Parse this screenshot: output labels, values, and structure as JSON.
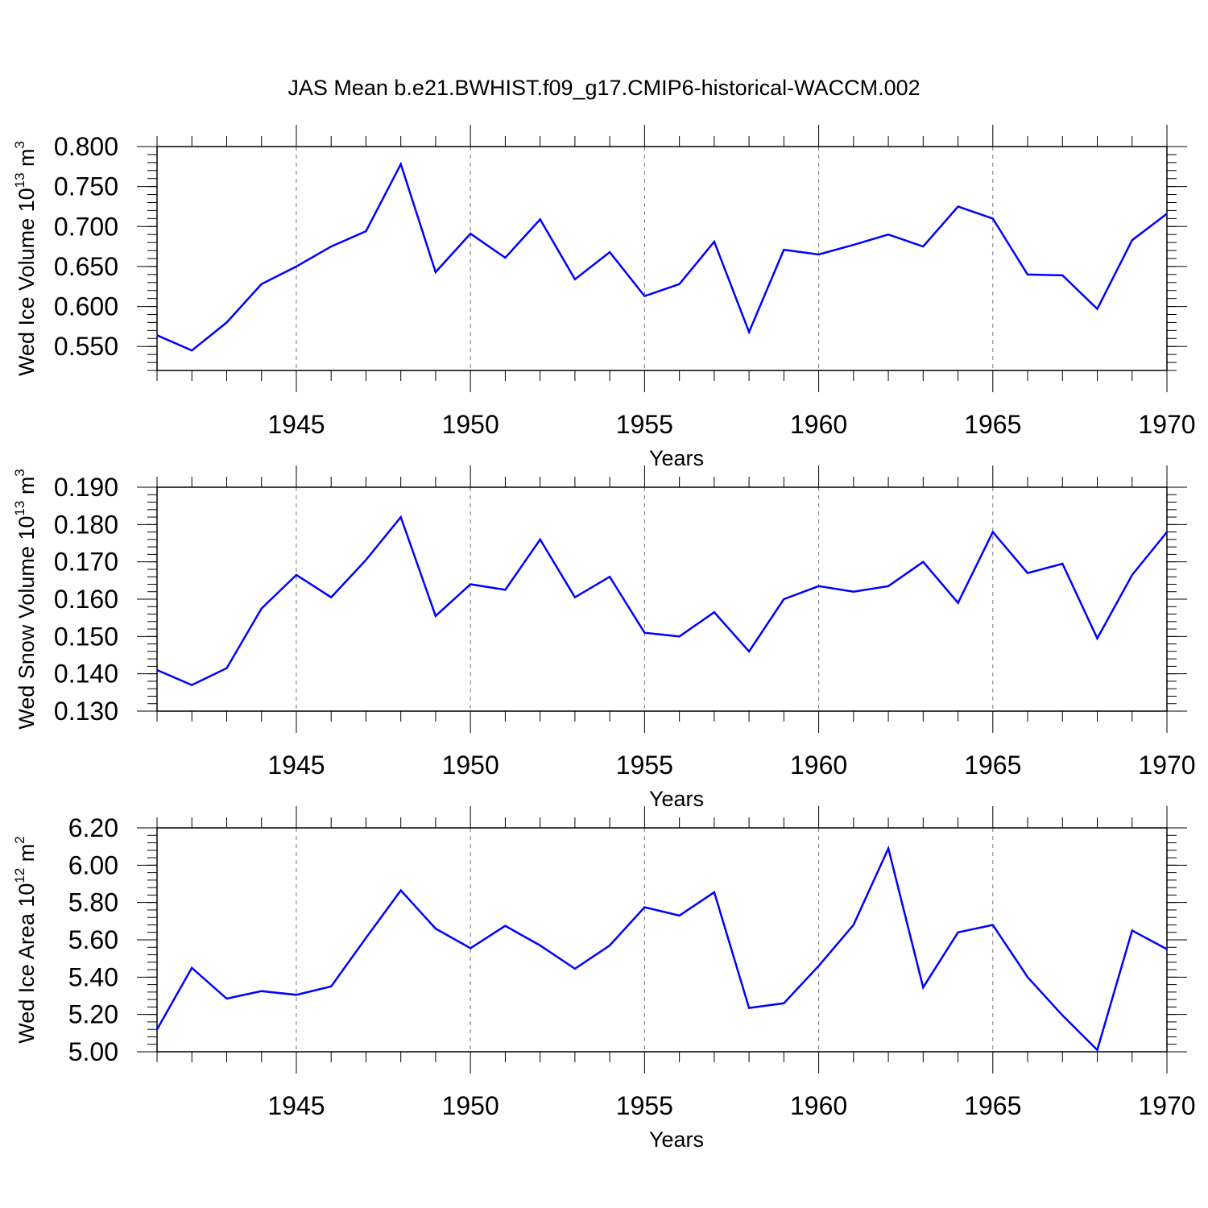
{
  "title": "JAS Mean b.e21.BWHIST.f09_g17.CMIP6-historical-WACCM.002",
  "chart_data": [
    {
      "type": "line",
      "ylabel": "Wed Ice Volume 10<sup>13</sup> m<sup>3</sup>",
      "ylabel_parts": [
        "Wed Ice Volume 10",
        "13",
        " m",
        "3"
      ],
      "xlabel": "Years",
      "x": [
        1941,
        1942,
        1943,
        1944,
        1945,
        1946,
        1947,
        1948,
        1949,
        1950,
        1951,
        1952,
        1953,
        1954,
        1955,
        1956,
        1957,
        1958,
        1959,
        1960,
        1961,
        1962,
        1963,
        1964,
        1965,
        1966,
        1967,
        1968,
        1969,
        1970
      ],
      "values": [
        0.564,
        0.545,
        0.58,
        0.628,
        0.65,
        0.675,
        0.694,
        0.778,
        0.643,
        0.691,
        0.661,
        0.709,
        0.634,
        0.668,
        0.613,
        0.628,
        0.681,
        0.568,
        0.671,
        0.665,
        0.677,
        0.69,
        0.675,
        0.725,
        0.71,
        0.64,
        0.639,
        0.597,
        0.683,
        0.716
      ],
      "ylim": [
        0.52,
        0.8
      ],
      "yticks": [
        0.55,
        0.6,
        0.65,
        0.7,
        0.75,
        0.8
      ],
      "ytick_labels": [
        "0.550",
        "0.600",
        "0.650",
        "0.700",
        "0.750",
        "0.800"
      ],
      "xlim": [
        1941,
        1970
      ],
      "xticks": [
        1945,
        1950,
        1955,
        1960,
        1965,
        1970
      ],
      "xtick_labels": [
        "1945",
        "1950",
        "1955",
        "1960",
        "1965",
        "1970"
      ],
      "line_color": "#0000ff"
    },
    {
      "type": "line",
      "ylabel_parts": [
        "Wed Snow Volume 10",
        "13",
        " m",
        "3"
      ],
      "xlabel": "Years",
      "x": [
        1941,
        1942,
        1943,
        1944,
        1945,
        1946,
        1947,
        1948,
        1949,
        1950,
        1951,
        1952,
        1953,
        1954,
        1955,
        1956,
        1957,
        1958,
        1959,
        1960,
        1961,
        1962,
        1963,
        1964,
        1965,
        1966,
        1967,
        1968,
        1969,
        1970
      ],
      "values": [
        0.141,
        0.137,
        0.1415,
        0.1575,
        0.1665,
        0.1605,
        0.1705,
        0.182,
        0.1555,
        0.164,
        0.1625,
        0.176,
        0.1605,
        0.166,
        0.151,
        0.15,
        0.1565,
        0.146,
        0.16,
        0.1635,
        0.162,
        0.1635,
        0.17,
        0.159,
        0.178,
        0.167,
        0.1695,
        0.1495,
        0.1665,
        0.178
      ],
      "ylim": [
        0.13,
        0.19
      ],
      "yticks": [
        0.13,
        0.14,
        0.15,
        0.16,
        0.17,
        0.18,
        0.19
      ],
      "ytick_labels": [
        "0.130",
        "0.140",
        "0.150",
        "0.160",
        "0.170",
        "0.180",
        "0.190"
      ],
      "xlim": [
        1941,
        1970
      ],
      "xticks": [
        1945,
        1950,
        1955,
        1960,
        1965,
        1970
      ],
      "xtick_labels": [
        "1945",
        "1950",
        "1955",
        "1960",
        "1965",
        "1970"
      ],
      "line_color": "#0000ff"
    },
    {
      "type": "line",
      "ylabel_parts": [
        "Wed Ice Area 10",
        "12",
        " m",
        "2"
      ],
      "xlabel": "Years",
      "x": [
        1941,
        1942,
        1943,
        1944,
        1945,
        1946,
        1947,
        1948,
        1949,
        1950,
        1951,
        1952,
        1953,
        1954,
        1955,
        1956,
        1957,
        1958,
        1959,
        1960,
        1961,
        1962,
        1963,
        1964,
        1965,
        1966,
        1967,
        1968,
        1969,
        1970
      ],
      "values": [
        5.12,
        5.45,
        5.285,
        5.325,
        5.305,
        5.35,
        5.61,
        5.865,
        5.66,
        5.555,
        5.675,
        5.57,
        5.445,
        5.57,
        5.775,
        5.73,
        5.855,
        5.235,
        5.26,
        5.46,
        5.68,
        6.09,
        5.345,
        5.64,
        5.68,
        5.4,
        5.195,
        5.01,
        5.65,
        5.55
      ],
      "ylim": [
        5.0,
        6.2
      ],
      "yticks": [
        5.0,
        5.2,
        5.4,
        5.6,
        5.8,
        6.0,
        6.2
      ],
      "ytick_labels": [
        "5.00",
        "5.20",
        "5.40",
        "5.60",
        "5.80",
        "6.00",
        "6.20"
      ],
      "xlim": [
        1941,
        1970
      ],
      "xticks": [
        1945,
        1950,
        1955,
        1960,
        1965,
        1970
      ],
      "xtick_labels": [
        "1945",
        "1950",
        "1955",
        "1960",
        "1965",
        "1970"
      ],
      "line_color": "#0000ff"
    }
  ]
}
